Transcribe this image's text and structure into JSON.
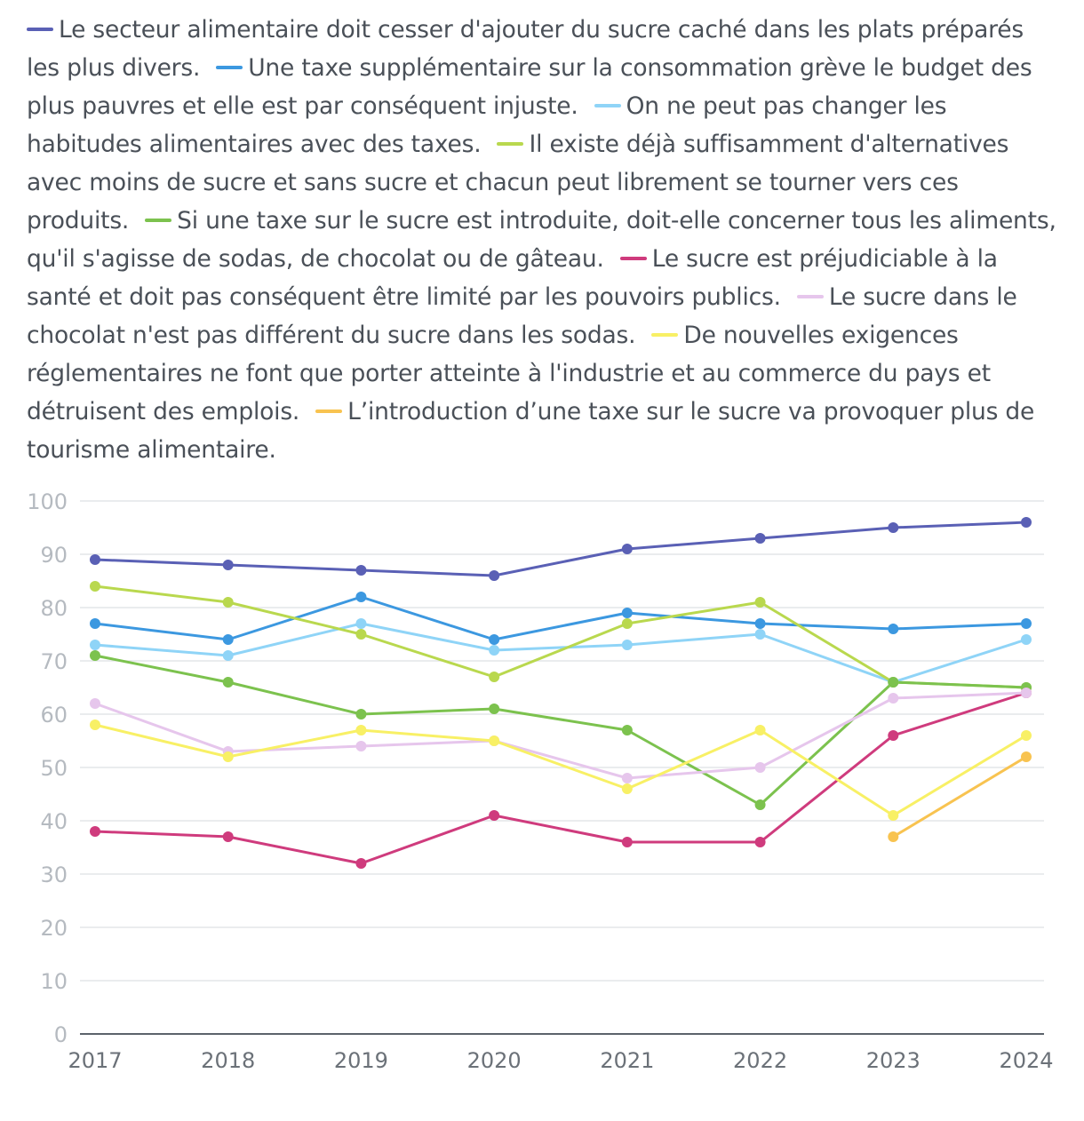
{
  "chart_data": {
    "type": "line",
    "title": "",
    "xlabel": "",
    "ylabel": "",
    "x": [
      "2017",
      "2018",
      "2019",
      "2020",
      "2021",
      "2022",
      "2023",
      "2024"
    ],
    "ylim": [
      0,
      100
    ],
    "yticks": [
      0,
      10,
      20,
      30,
      40,
      50,
      60,
      70,
      80,
      90,
      100
    ],
    "grid": true,
    "legend_position": "top",
    "series": [
      {
        "name": "Le secteur alimentaire doit cesser d'ajouter du sucre caché dans les plats préparés les plus divers.",
        "color": "#5a60b5",
        "values": [
          89,
          88,
          87,
          86,
          91,
          93,
          95,
          96
        ]
      },
      {
        "name": "Une taxe supplémentaire sur la consommation grève le budget des plus pauvres et elle est par conséquent injuste.",
        "color": "#3c98e0",
        "values": [
          77,
          74,
          82,
          74,
          79,
          77,
          76,
          77
        ]
      },
      {
        "name": "On ne peut pas changer les habitudes alimentaires avec des taxes.",
        "color": "#8fd4f7",
        "values": [
          73,
          71,
          77,
          72,
          73,
          75,
          66,
          74
        ]
      },
      {
        "name": "Il existe déjà suffisamment d'alternatives avec moins de sucre et sans sucre et chacun peut librement se tourner vers ces produits.",
        "color": "#b9d84e",
        "values": [
          84,
          81,
          75,
          67,
          77,
          81,
          66,
          65
        ]
      },
      {
        "name": "Si une taxe sur le sucre est introduite, doit-elle concerner tous les aliments, qu'il s'agisse de sodas, de chocolat ou de gâteau.",
        "color": "#7cc24e",
        "values": [
          71,
          66,
          60,
          61,
          57,
          43,
          66,
          65
        ]
      },
      {
        "name": "Le sucre est préjudiciable à la santé et doit pas conséquent être limité par les pouvoirs publics.",
        "color": "#cf3b7d",
        "values": [
          38,
          37,
          32,
          41,
          36,
          36,
          56,
          64
        ]
      },
      {
        "name": "Le sucre dans le chocolat n'est pas différent du sucre dans les sodas.",
        "color": "#e6c6ec",
        "values": [
          62,
          53,
          54,
          55,
          48,
          50,
          63,
          64
        ]
      },
      {
        "name": "De nouvelles exigences réglementaires ne font que porter atteinte à l'industrie et au commerce du pays et détruisent des emplois.",
        "color": "#f8f065",
        "values": [
          58,
          52,
          57,
          55,
          46,
          57,
          41,
          56
        ]
      },
      {
        "name": "L’introduction d’une taxe sur le sucre va provoquer plus de tourisme alimentaire.",
        "color": "#f8c350",
        "values": [
          null,
          null,
          null,
          null,
          null,
          null,
          37,
          52
        ]
      }
    ]
  }
}
